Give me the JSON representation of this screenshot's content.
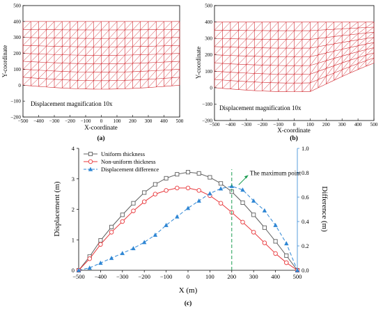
{
  "panels": {
    "a": {
      "caption": "(a)",
      "xlabel": "X-coordinate",
      "ylabel": "Y-coordinate",
      "annotation": "Displacement magnification 10x",
      "xticks": [
        "−500",
        "−400",
        "−300",
        "−200",
        "−100",
        "0",
        "100",
        "200",
        "300",
        "400",
        "500"
      ],
      "yticks": [
        "−200",
        "−100",
        "0",
        "100",
        "200",
        "300",
        "400",
        "500"
      ]
    },
    "b": {
      "caption": "(b)",
      "xlabel": "X-coordinate",
      "ylabel": "Y-coordinate",
      "annotation": "Displacement magnification 10x",
      "xticks": [
        "−500",
        "−400",
        "−300",
        "−200",
        "−100",
        "0",
        "100",
        "200",
        "300",
        "400",
        "500"
      ],
      "yticks": [
        "−200",
        "−100",
        "0",
        "100",
        "200",
        "300",
        "400",
        "500"
      ]
    },
    "c": {
      "caption": "(c)"
    }
  },
  "colors": {
    "mesh": "#d1232a",
    "uniform": "#5f5f5f",
    "nonuniform": "#e8373b",
    "difference": "#2e86d4",
    "maxline": "#1a9c50",
    "right_axis": "#2e86d4"
  },
  "chart_data": [
    {
      "type": "mesh",
      "panel": "a",
      "xlim": [
        -500,
        500
      ],
      "ylim": [
        -200,
        500
      ],
      "mesh": {
        "x_range": [
          -500,
          500
        ],
        "top_y": 400,
        "bottom_y_original": 0,
        "columns": 20,
        "rows": 8,
        "bottom_sag_center": -25,
        "kink_x": null
      }
    },
    {
      "type": "mesh",
      "panel": "b",
      "xlim": [
        -500,
        500
      ],
      "ylim": [
        -200,
        500
      ],
      "mesh": {
        "x_range": [
          -500,
          500
        ],
        "top_y": 400,
        "bottom_y_original": 0,
        "columns": 20,
        "rows": 8,
        "bottom_sag_center": -25,
        "kink_x": 100,
        "right_bottom_y": 150
      }
    },
    {
      "type": "line",
      "panel": "c",
      "xlabel": "X (m)",
      "ylabel": "Displacement (m)",
      "y2label": "Difference (m)",
      "xlim": [
        -500,
        500
      ],
      "ylim": [
        0,
        4
      ],
      "y2lim": [
        0,
        1.0
      ],
      "xticks": [
        -500,
        -400,
        -300,
        -200,
        -100,
        0,
        100,
        200,
        300,
        400,
        500
      ],
      "yticks": [
        0,
        1,
        2,
        3,
        4
      ],
      "y2ticks": [
        0,
        0.2,
        0.4,
        0.6,
        0.8,
        1.0
      ],
      "y2tick_labels": [
        "0.0",
        "0.2",
        "0.4",
        "0.6",
        "0.8",
        "1.0"
      ],
      "legend": "top-left",
      "max_point": {
        "x": 200,
        "label": "The maximum point"
      },
      "series": [
        {
          "name": "Uniform thickness",
          "axis": "left",
          "marker": "square",
          "x": [
            -500,
            -450,
            -400,
            -350,
            -300,
            -250,
            -200,
            -150,
            -100,
            -50,
            0,
            50,
            100,
            150,
            200,
            250,
            300,
            350,
            400,
            450,
            500
          ],
          "values": [
            0,
            0.45,
            0.98,
            1.42,
            1.82,
            2.2,
            2.55,
            2.82,
            3.02,
            3.15,
            3.22,
            3.18,
            3.05,
            2.85,
            2.58,
            2.22,
            1.82,
            1.4,
            0.95,
            0.48,
            0
          ]
        },
        {
          "name": "Non-uniform thickness",
          "axis": "left",
          "marker": "circle",
          "x": [
            -500,
            -450,
            -400,
            -350,
            -300,
            -250,
            -200,
            -150,
            -100,
            -50,
            0,
            50,
            100,
            150,
            200,
            250,
            300,
            350,
            400,
            450,
            500
          ],
          "values": [
            0,
            0.38,
            0.85,
            1.25,
            1.6,
            1.95,
            2.25,
            2.5,
            2.62,
            2.7,
            2.7,
            2.62,
            2.45,
            2.2,
            1.9,
            1.58,
            1.25,
            0.9,
            0.55,
            0.25,
            0
          ]
        },
        {
          "name": "Displacement difference",
          "axis": "right",
          "marker": "triangle",
          "x": [
            -500,
            -450,
            -400,
            -350,
            -300,
            -250,
            -200,
            -150,
            -100,
            -50,
            0,
            50,
            100,
            150,
            200,
            250,
            300,
            350,
            400,
            450,
            500
          ],
          "values": [
            0,
            0.02,
            0.06,
            0.1,
            0.14,
            0.18,
            0.23,
            0.29,
            0.37,
            0.44,
            0.51,
            0.57,
            0.63,
            0.67,
            0.69,
            0.66,
            0.57,
            0.49,
            0.37,
            0.22,
            0
          ]
        }
      ]
    }
  ]
}
